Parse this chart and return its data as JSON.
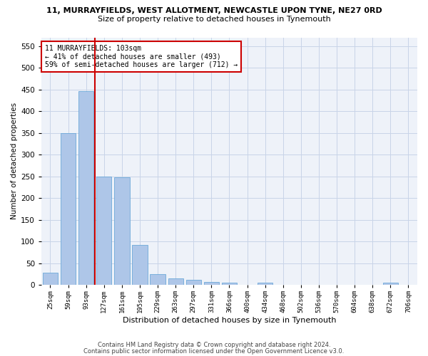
{
  "title_line1": "11, MURRAYFIELDS, WEST ALLOTMENT, NEWCASTLE UPON TYNE, NE27 0RD",
  "title_line2": "Size of property relative to detached houses in Tynemouth",
  "xlabel": "Distribution of detached houses by size in Tynemouth",
  "ylabel": "Number of detached properties",
  "bar_color": "#aec6e8",
  "bar_edge_color": "#5a9fd4",
  "grid_color": "#c8d4e8",
  "background_color": "#eef2f9",
  "vline_color": "#cc0000",
  "vline_x": 2.5,
  "annotation_text": "11 MURRAYFIELDS: 103sqm\n← 41% of detached houses are smaller (493)\n59% of semi-detached houses are larger (712) →",
  "annotation_box_color": "white",
  "annotation_box_edge": "#cc0000",
  "bins": [
    "25sqm",
    "59sqm",
    "93sqm",
    "127sqm",
    "161sqm",
    "195sqm",
    "229sqm",
    "263sqm",
    "297sqm",
    "331sqm",
    "366sqm",
    "400sqm",
    "434sqm",
    "468sqm",
    "502sqm",
    "536sqm",
    "570sqm",
    "604sqm",
    "638sqm",
    "672sqm",
    "706sqm"
  ],
  "values": [
    28,
    350,
    447,
    250,
    248,
    93,
    25,
    15,
    12,
    7,
    6,
    0,
    5,
    0,
    0,
    0,
    0,
    0,
    0,
    5,
    0
  ],
  "ylim": [
    0,
    570
  ],
  "yticks": [
    0,
    50,
    100,
    150,
    200,
    250,
    300,
    350,
    400,
    450,
    500,
    550
  ],
  "footer_line1": "Contains HM Land Registry data © Crown copyright and database right 2024.",
  "footer_line2": "Contains public sector information licensed under the Open Government Licence v3.0.",
  "figsize": [
    6.0,
    5.0
  ],
  "dpi": 100
}
